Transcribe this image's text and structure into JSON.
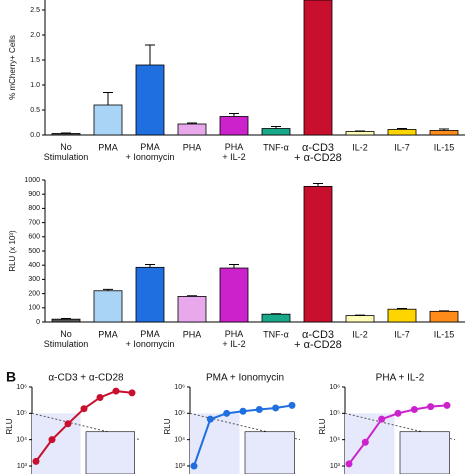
{
  "chart_data": [
    {
      "type": "bar",
      "ylabel": "% mCherry+ Cells",
      "categories": [
        "No\nStimulation",
        "PMA",
        "PMA\n+ Ionomycin",
        "PHA",
        "PHA\n+ IL-2",
        "TNF-α",
        "α-CD3\n+ α-CD28",
        "IL-2",
        "IL-7",
        "IL-15"
      ],
      "values": [
        0.03,
        0.6,
        1.4,
        0.22,
        0.37,
        0.13,
        2.7,
        0.07,
        0.11,
        0.09
      ],
      "errors": [
        0.01,
        0.25,
        0.4,
        0.02,
        0.06,
        0.04,
        0,
        0.01,
        0.02,
        0.03
      ],
      "colors": [
        "#555555",
        "#a9d4f5",
        "#1f6fe0",
        "#e8a8ec",
        "#cc22cc",
        "#1aa88a",
        "#c8102e",
        "#fffcb8",
        "#ffd500",
        "#ff8c1a"
      ],
      "ylim": [
        0,
        2.7
      ],
      "yticks": [
        {
          "value": 0,
          "label": "0.0"
        },
        0.5,
        {
          "value": 1,
          "label": "1.0"
        },
        1.5,
        {
          "value": 2,
          "label": "2.0"
        },
        2.5
      ]
    },
    {
      "type": "bar",
      "ylabel": "RLU (x 10³)",
      "categories": [
        "No\nStimulation",
        "PMA",
        "PMA\n+ Ionomycin",
        "PHA",
        "PHA\n+ IL-2",
        "TNF-α",
        "α-CD3\n+ α-CD28",
        "IL-2",
        "IL-7",
        "IL-15"
      ],
      "values": [
        20,
        220,
        385,
        180,
        380,
        55,
        955,
        45,
        90,
        75
      ],
      "errors": [
        5,
        10,
        20,
        5,
        25,
        3,
        20,
        3,
        5,
        3
      ],
      "colors": [
        "#555555",
        "#a9d4f5",
        "#1f6fe0",
        "#e8a8ec",
        "#cc22cc",
        "#1aa88a",
        "#c8102e",
        "#fffcb8",
        "#ffd500",
        "#ff8c1a"
      ],
      "ylim": [
        0,
        1000
      ],
      "yticks": [
        0,
        100,
        200,
        300,
        400,
        500,
        600,
        700,
        800,
        900,
        1000
      ]
    },
    {
      "type": "line",
      "panel": "B",
      "title": "α-CD3 + α-CD28",
      "ylabel": "RLU",
      "log_y": true,
      "x": [
        0,
        1,
        2,
        3,
        4,
        5,
        6
      ],
      "series": [
        {
          "color": "#c8102e",
          "values": [
            1500,
            10000,
            40000,
            150000,
            400000,
            700000,
            600000
          ]
        }
      ],
      "xlim": [
        0,
        6
      ],
      "ylim": [
        1000,
        1000000
      ],
      "yticks": [
        {
          "value": 1000,
          "label": "10³"
        },
        {
          "value": 10000,
          "label": "10⁴"
        },
        {
          "value": 100000,
          "label": "10⁵"
        },
        {
          "value": 1000000,
          "label": "10⁶"
        }
      ]
    },
    {
      "type": "line",
      "title": "PMA + Ionomycin",
      "ylabel": "RLU",
      "log_y": true,
      "x": [
        0,
        1,
        2,
        3,
        4,
        5,
        6
      ],
      "series": [
        {
          "color": "#1f6fe0",
          "values": [
            1000,
            60000,
            100000,
            120000,
            140000,
            160000,
            200000
          ]
        }
      ],
      "xlim": [
        0,
        6
      ],
      "ylim": [
        1000,
        1000000
      ],
      "yticks": [
        {
          "value": 1000,
          "label": "10³"
        },
        {
          "value": 10000,
          "label": "10⁴"
        },
        {
          "value": 100000,
          "label": "10⁵"
        },
        {
          "value": 1000000,
          "label": "10⁶"
        }
      ]
    },
    {
      "type": "line",
      "title": "PHA + IL-2",
      "ylabel": "RLU",
      "log_y": true,
      "x": [
        0,
        1,
        2,
        3,
        4,
        5,
        6
      ],
      "series": [
        {
          "color": "#cc22cc",
          "values": [
            1200,
            8000,
            60000,
            100000,
            140000,
            180000,
            200000
          ]
        }
      ],
      "xlim": [
        0,
        6
      ],
      "ylim": [
        1000,
        1000000
      ],
      "yticks": [
        {
          "value": 1000,
          "label": "10³"
        },
        {
          "value": 10000,
          "label": "10⁴"
        },
        {
          "value": 100000,
          "label": "10⁵"
        },
        {
          "value": 1000000,
          "label": "10⁶"
        }
      ]
    }
  ]
}
